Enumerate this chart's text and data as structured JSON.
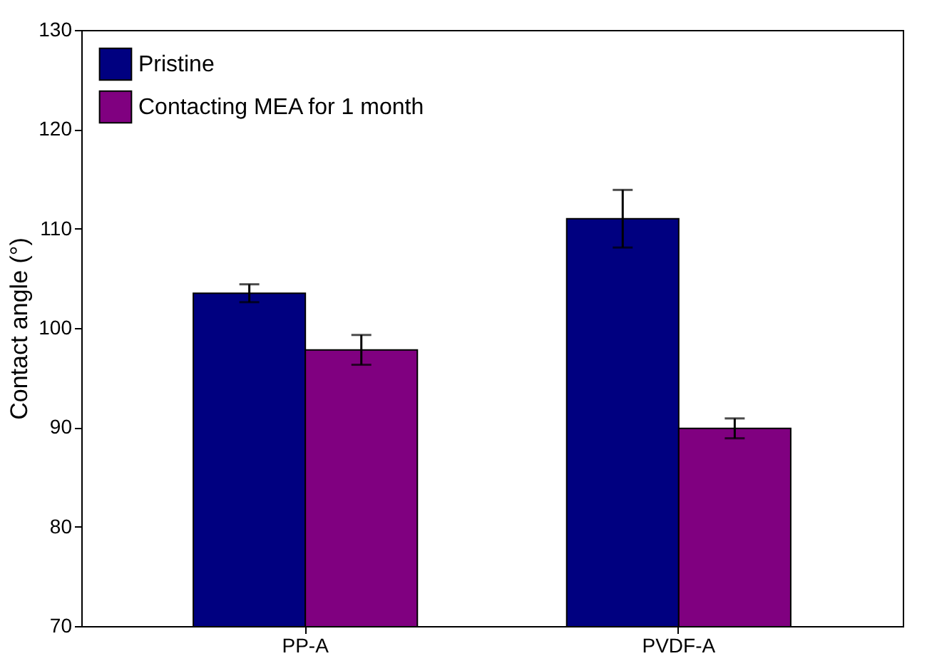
{
  "chart_data": {
    "type": "bar",
    "ylabel": "Contact angle (°)",
    "categories": [
      "PP-A",
      "PVDF-A"
    ],
    "series": [
      {
        "name": "Pristine",
        "color": "#000080",
        "values": [
          103.5,
          111.0
        ],
        "errors": [
          0.9,
          2.9
        ]
      },
      {
        "name": "Contacting MEA for 1 month",
        "color": "#800080",
        "values": [
          97.8,
          89.9
        ],
        "errors": [
          1.5,
          1.0
        ]
      }
    ],
    "ylim": [
      70,
      130
    ],
    "yticks": [
      70,
      80,
      90,
      100,
      110,
      120,
      130
    ],
    "grid": false,
    "legend": "top left"
  }
}
